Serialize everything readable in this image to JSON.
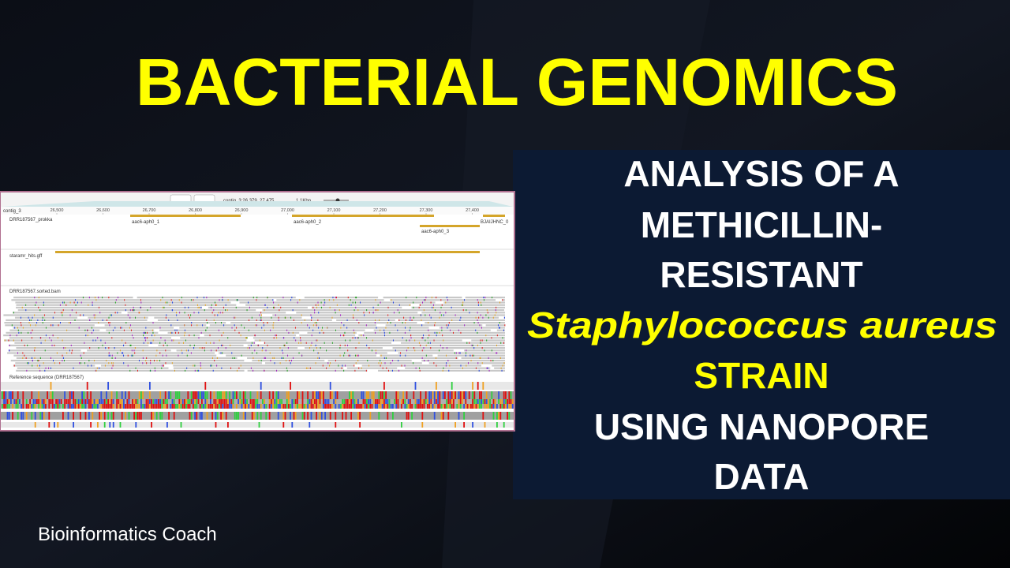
{
  "title": "BACTERIAL GENOMICS",
  "subtitle": {
    "lines": [
      "ANALYSIS OF A",
      "METHICILLIN-",
      "RESISTANT",
      "Staphylococcus aureus",
      "STRAIN",
      "USING NANOPORE",
      "DATA"
    ]
  },
  "browser": {
    "reference_name": "contig_3",
    "location": "contig_3:26,379..27,475",
    "zoom": "1.1Kbp",
    "ruler": [
      "26,500",
      "26,600",
      "26,700",
      "26,800",
      "26,900",
      "27,000",
      "27,100",
      "27,200",
      "27,300",
      "27,400"
    ],
    "tracks": {
      "annotation": "DRR187567_prokka",
      "gff": "staramr_hits.gff",
      "alignments": "DRR187567.sorted.bam",
      "reference": "Reference sequence (DRR187567)"
    },
    "features": [
      "aac6-aph0_1",
      "aac6-aph0_2",
      "aac6-aph0_3",
      "BJAIJHNC_0"
    ]
  },
  "footer": "Bioinformatics Coach"
}
